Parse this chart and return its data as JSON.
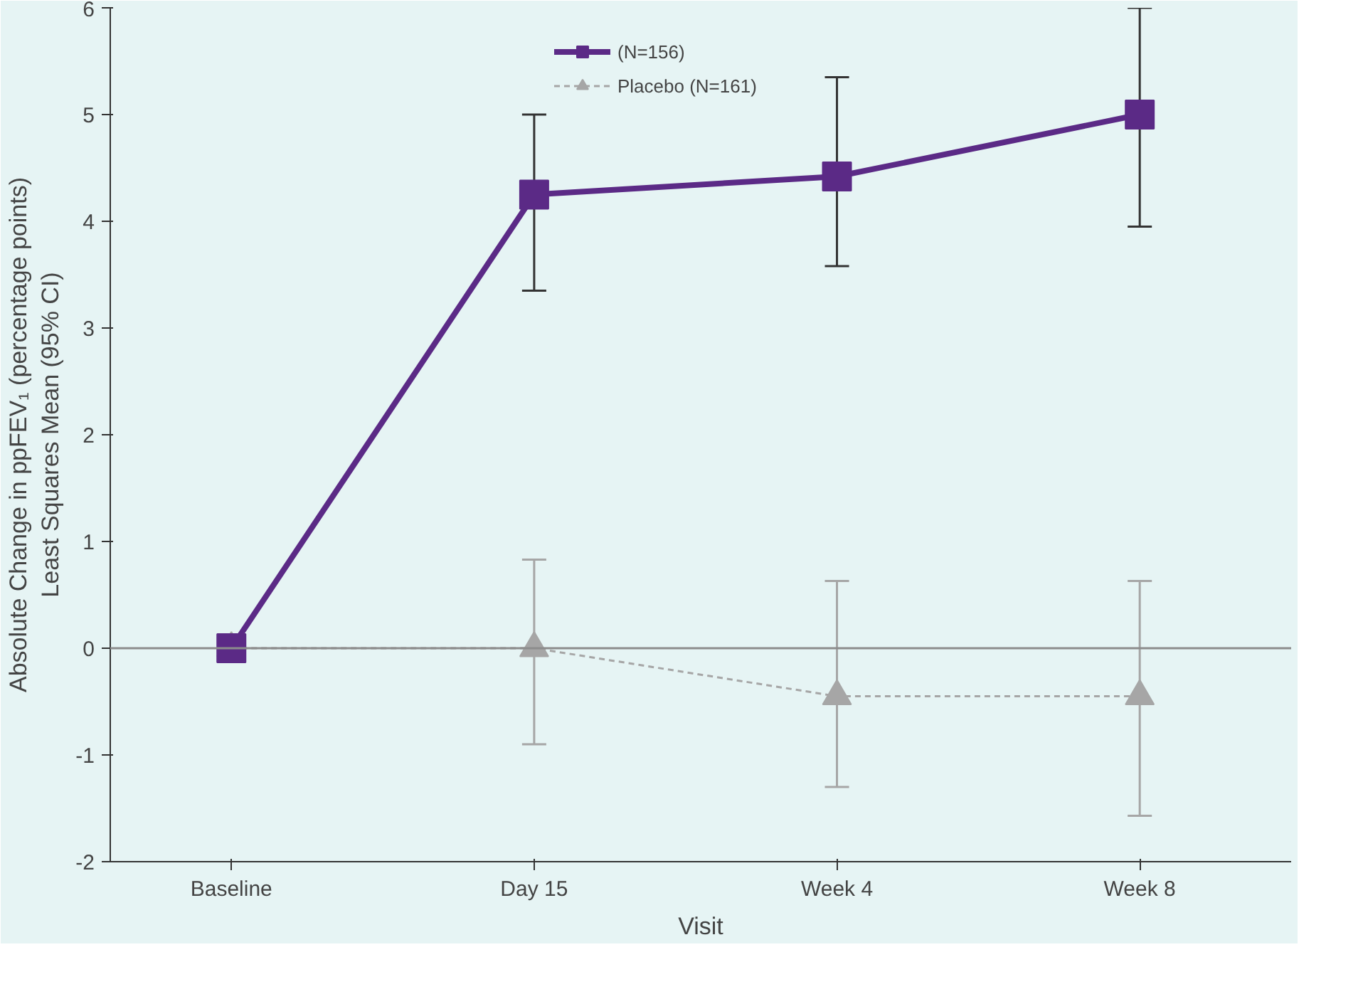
{
  "chart_data": {
    "type": "line",
    "xlabel": "Visit",
    "ylabel": "Absolute Change in ppFEV₁ (percentage points)\nLeast Squares Mean (95% CI)",
    "categories": [
      "Baseline",
      "Day 15",
      "Week 4",
      "Week 8"
    ],
    "series": [
      {
        "name": "(N=156)",
        "color": "#5b2a86",
        "values": [
          0,
          4.25,
          4.42,
          5.0
        ],
        "errors": [
          null,
          [
            3.35,
            5.0
          ],
          [
            3.58,
            5.35
          ],
          [
            3.95,
            6.0
          ]
        ],
        "marker": "square",
        "line_style": "solid"
      },
      {
        "name": "Placebo (N=161)",
        "color": "#a6a6a6",
        "values": [
          0,
          0,
          -0.45,
          -0.45
        ],
        "errors": [
          null,
          [
            -0.9,
            0.83
          ],
          [
            -1.3,
            0.63
          ],
          [
            -1.57,
            0.63
          ]
        ],
        "marker": "triangle",
        "line_style": "dashed"
      }
    ],
    "ylim": [
      -2,
      6
    ],
    "yticks": [
      -2,
      -1,
      0,
      1,
      2,
      3,
      4,
      5,
      6
    ],
    "grid": false,
    "legend": "top right",
    "ref_lines": [
      {
        "axis": "y",
        "value": 0,
        "label": null,
        "color": "#8c8c8c"
      }
    ]
  }
}
